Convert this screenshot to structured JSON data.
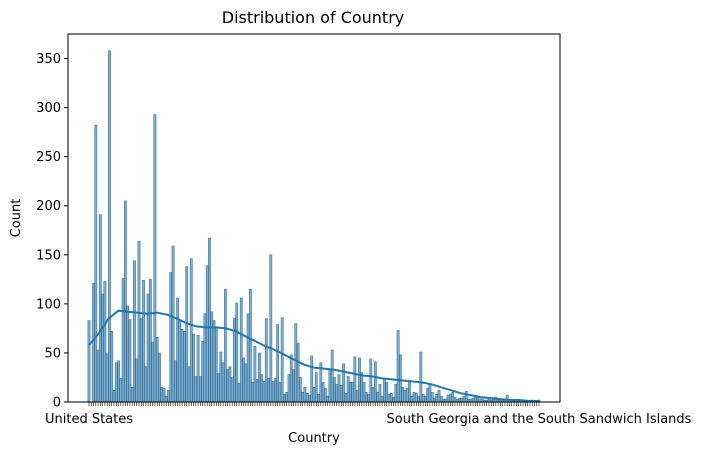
{
  "chart_data": {
    "type": "bar",
    "title": "Distribution of Country",
    "xlabel": "Country",
    "ylabel": "Count",
    "ylim": [
      0,
      375
    ],
    "yticks": [
      0,
      50,
      100,
      150,
      200,
      250,
      300,
      350
    ],
    "grid": false,
    "legend": "none",
    "bar_color": "#1f77b4",
    "bar_alpha": 0.6,
    "kde_color": "#1f77b4",
    "first_category_label": "United States",
    "last_category_label": "South Georgia and the South Sandwich Islands",
    "values": [
      83,
      0,
      121,
      282,
      53,
      191,
      110,
      123,
      49,
      358,
      72,
      12,
      40,
      42,
      24,
      126,
      205,
      98,
      84,
      15,
      144,
      44,
      164,
      85,
      124,
      36,
      110,
      125,
      61,
      293,
      66,
      50,
      15,
      14,
      6,
      12,
      132,
      159,
      42,
      106,
      84,
      74,
      72,
      138,
      36,
      146,
      69,
      26,
      68,
      26,
      62,
      90,
      139,
      167,
      92,
      83,
      75,
      29,
      51,
      40,
      115,
      33,
      36,
      25,
      85,
      101,
      19,
      106,
      45,
      39,
      90,
      115,
      20,
      57,
      23,
      50,
      28,
      21,
      85,
      24,
      150,
      21,
      24,
      79,
      20,
      86,
      8,
      10,
      28,
      48,
      33,
      80,
      60,
      25,
      10,
      15,
      9,
      7,
      47,
      15,
      30,
      8,
      40,
      20,
      14,
      6,
      33,
      53,
      25,
      18,
      28,
      17,
      39,
      9,
      26,
      20,
      20,
      46,
      12,
      45,
      30,
      20,
      10,
      8,
      44,
      15,
      41,
      10,
      18,
      6,
      23,
      20,
      8,
      9,
      5,
      18,
      73,
      48,
      15,
      12,
      14,
      20,
      6,
      10,
      9,
      6,
      51,
      8,
      6,
      14,
      18,
      10,
      4,
      8,
      12,
      6,
      3,
      3,
      7,
      8,
      10,
      5,
      3,
      4,
      4,
      6,
      11,
      3,
      3,
      4,
      7,
      6,
      3,
      3,
      2,
      2,
      3,
      2,
      4,
      5,
      2,
      2,
      2,
      3,
      7,
      2,
      2,
      1,
      2,
      3,
      2,
      2,
      1,
      1,
      1,
      2,
      1,
      1,
      2
    ],
    "kde": [
      58,
      70,
      85,
      93,
      92,
      91,
      90,
      91,
      89,
      85,
      80,
      77,
      76,
      76,
      75,
      72,
      67,
      62,
      57,
      53,
      48,
      43,
      38,
      35,
      34,
      33,
      31,
      29,
      27,
      26,
      24,
      23,
      22,
      21,
      20,
      18,
      15,
      12,
      9,
      7,
      5,
      4,
      3,
      2,
      2,
      1,
      1
    ]
  }
}
